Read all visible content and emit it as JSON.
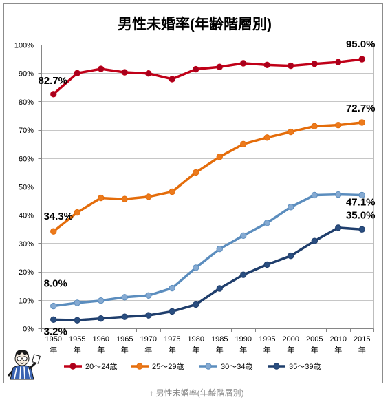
{
  "chart_data": {
    "type": "line",
    "title": "男性未婚率(年齢階層別)",
    "categories": [
      "1950",
      "1955",
      "1960",
      "1965",
      "1970",
      "1975",
      "1980",
      "1985",
      "1990",
      "1995",
      "2000",
      "2005",
      "2010",
      "2015"
    ],
    "xtick_unit": "年",
    "ylim": [
      0,
      100
    ],
    "yticks": [
      0,
      10,
      20,
      30,
      40,
      50,
      60,
      70,
      80,
      90,
      100
    ],
    "ytick_labels": [
      "0%",
      "10%",
      "20%",
      "30%",
      "40%",
      "50%",
      "60%",
      "70%",
      "80%",
      "90%",
      "100%"
    ],
    "grid": true,
    "legend": "bottom",
    "series": [
      {
        "name": "20～24歳",
        "color": "#C00018",
        "marker_color": "#A8001C",
        "values": [
          82.7,
          90.1,
          91.6,
          90.4,
          90.0,
          88.0,
          91.5,
          92.3,
          93.6,
          93.0,
          92.7,
          93.4,
          94.0,
          95.0
        ]
      },
      {
        "name": "25～29歳",
        "color": "#E46C0A",
        "marker_color": "#EC7A1C",
        "values": [
          34.3,
          41.0,
          46.1,
          45.7,
          46.5,
          48.3,
          55.1,
          60.6,
          65.1,
          67.4,
          69.4,
          71.4,
          71.8,
          72.7
        ]
      },
      {
        "name": "30～34歳",
        "color": "#5B8DBE",
        "marker_color": "#85AAD2",
        "values": [
          8.0,
          9.1,
          9.9,
          11.1,
          11.7,
          14.3,
          21.5,
          28.1,
          32.8,
          37.3,
          42.9,
          47.1,
          47.3,
          47.1
        ]
      },
      {
        "name": "35～39歳",
        "color": "#1F3E6C",
        "marker_color": "#2A4E80",
        "values": [
          3.2,
          3.0,
          3.6,
          4.2,
          4.7,
          6.1,
          8.5,
          14.2,
          19.0,
          22.6,
          25.7,
          30.9,
          35.6,
          35.0
        ]
      }
    ],
    "data_labels": [
      {
        "series": "20～24歳",
        "x": "1950",
        "text": "82.7%"
      },
      {
        "series": "20～24歳",
        "x": "2015",
        "text": "95.0%"
      },
      {
        "series": "25～29歳",
        "x": "1950",
        "text": "34.3%"
      },
      {
        "series": "25～29歳",
        "x": "2015",
        "text": "72.7%"
      },
      {
        "series": "30～34歳",
        "x": "1950",
        "text": "8.0%"
      },
      {
        "series": "30～34歳",
        "x": "2015",
        "text": "47.1%"
      },
      {
        "series": "35～39歳",
        "x": "1950",
        "text": "3.2%"
      },
      {
        "series": "35～39歳",
        "x": "2015",
        "text": "35.0%"
      }
    ]
  },
  "caption": "↑ 男性未婚率(年齢階層別)",
  "decorations": {
    "mascot": "mascot-icon"
  }
}
